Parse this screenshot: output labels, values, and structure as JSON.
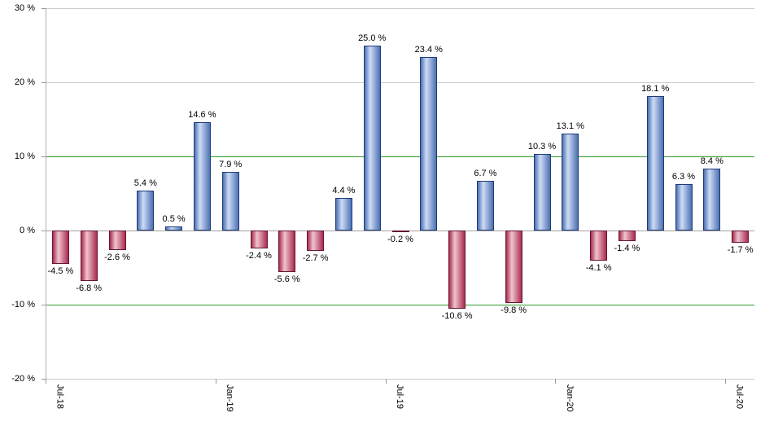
{
  "chart_data": {
    "type": "bar",
    "title": "",
    "xlabel": "",
    "ylabel": "",
    "values": [
      -4.5,
      -6.8,
      -2.6,
      5.4,
      0.5,
      14.6,
      7.9,
      -2.4,
      -5.6,
      -2.7,
      4.4,
      25.0,
      -0.2,
      23.4,
      -10.6,
      6.7,
      -9.8,
      10.3,
      13.1,
      -4.1,
      -1.4,
      18.1,
      6.3,
      8.4,
      -1.7
    ],
    "bar_labels": [
      "-4.5 %",
      "-6.8 %",
      "-2.6 %",
      "5.4 %",
      "0.5 %",
      "14.6 %",
      "7.9 %",
      "-2.4 %",
      "-5.6 %",
      "-2.7 %",
      "4.4 %",
      "25.0 %",
      "-0.2 %",
      "23.4 %",
      "-10.6 %",
      "6.7 %",
      "-9.8 %",
      "10.3 %",
      "13.1 %",
      "-4.1 %",
      "-1.4 %",
      "18.1 %",
      "6.3 %",
      "8.4 %",
      "-1.7 %"
    ],
    "x_ticks": [
      {
        "index": 0,
        "label": "Jul-18"
      },
      {
        "index": 6,
        "label": "Jan-19"
      },
      {
        "index": 12,
        "label": "Jul-19"
      },
      {
        "index": 18,
        "label": "Jan-20"
      },
      {
        "index": 24,
        "label": "Jul-20"
      }
    ],
    "y_axis": {
      "min": -20,
      "max": 30,
      "ticks": [
        {
          "value": 30,
          "label": "30 %"
        },
        {
          "value": 20,
          "label": "20 %"
        },
        {
          "value": 10,
          "label": "10 %",
          "highlight": true
        },
        {
          "value": 0,
          "label": "0 %",
          "zero": true
        },
        {
          "value": -10,
          "label": "-10 %",
          "highlight": true
        },
        {
          "value": -20,
          "label": "-20 %"
        }
      ]
    },
    "grid": "horizontal",
    "legend": "none",
    "colors": {
      "background": "#ffffff",
      "text": "#000000",
      "bar_positive_edge": "#4d71b3",
      "bar_positive_highlight": "#cddcf5",
      "bar_positive_border": "#1f3a77",
      "bar_negative_edge": "#aa2b50",
      "bar_negative_highlight": "#efc4ce",
      "bar_negative_border": "#641732",
      "gridline": "#cccccc",
      "gridline_highlight": "#2e9b2e",
      "zero_line": "#a3a3a3",
      "axis_line": "#b0b0b0",
      "tick": "#9a9a9a"
    }
  }
}
